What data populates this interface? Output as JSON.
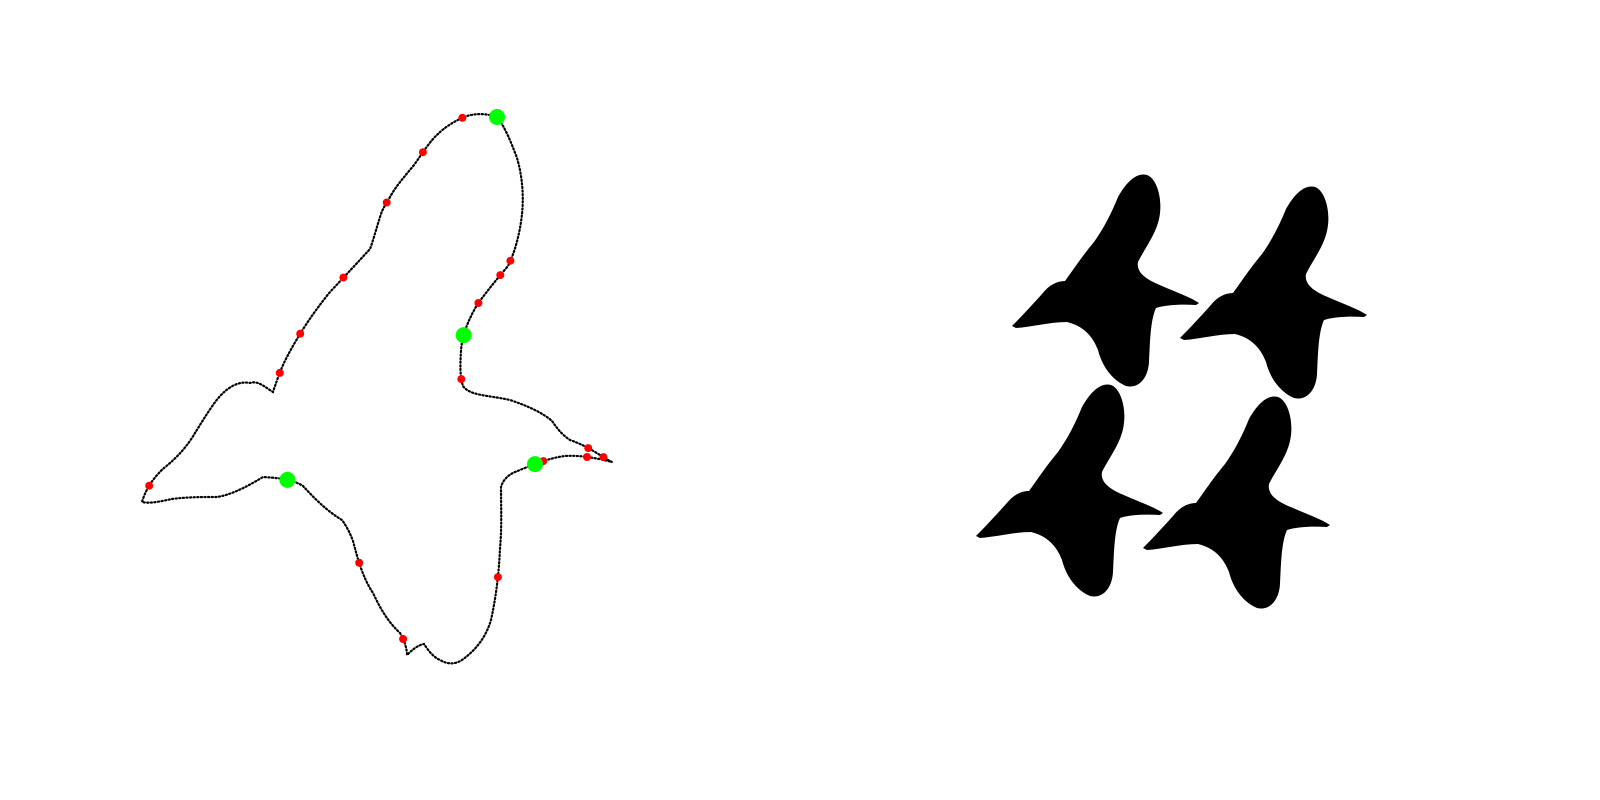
{
  "colors": {
    "background": "#ffffff",
    "contour_dot": "#000000",
    "landmark_point": "#ff0000",
    "corner_point": "#00ff00",
    "silhouette_fill": "#000000"
  },
  "contour": {
    "red_point_count": 18,
    "green_point_count": 4
  },
  "tiling": {
    "tile_count": 4,
    "rows": 2,
    "columns": 2
  }
}
